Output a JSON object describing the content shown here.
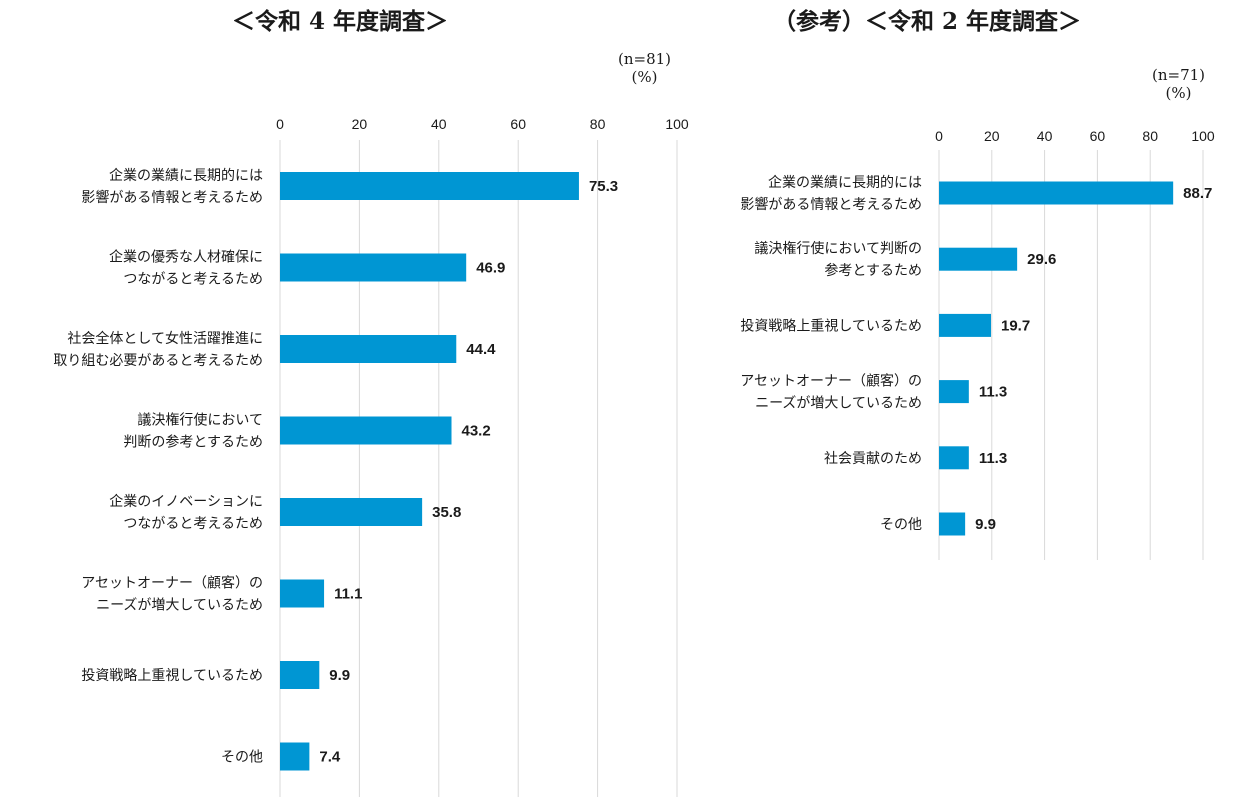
{
  "colors": {
    "bar": "#0096D3",
    "grid": "#D9D9D9",
    "text": "#1A1A1A"
  },
  "left": {
    "title": "＜令和 4 年度調査＞",
    "n_label": "(n=81)",
    "unit_label": "(%)"
  },
  "right": {
    "title": "（参考）＜令和 2 年度調査＞",
    "n_label": "(n=71)",
    "unit_label": "(%)"
  },
  "chart_data": [
    {
      "type": "bar",
      "orientation": "horizontal",
      "title": "＜令和 4 年度調査＞",
      "categories": [
        [
          "企業の業績に長期的には",
          "影響がある情報と考えるため"
        ],
        [
          "企業の優秀な人材確保に",
          "つながると考えるため"
        ],
        [
          "社会全体として女性活躍推進に",
          "取り組む必要があると考えるため"
        ],
        [
          "議決権行使において",
          "判断の参考とするため"
        ],
        [
          "企業のイノベーションに",
          "つながると考えるため"
        ],
        [
          "アセットオーナー（顧客）の",
          "ニーズが増大しているため"
        ],
        [
          "投資戦略上重視しているため"
        ],
        [
          "その他"
        ]
      ],
      "values": [
        75.3,
        46.9,
        44.4,
        43.2,
        35.8,
        11.1,
        9.9,
        7.4
      ],
      "data_labels": [
        "75.3",
        "46.9",
        "44.4",
        "43.2",
        "35.8",
        "11.1",
        "9.9",
        "7.4"
      ],
      "xlim": [
        0,
        100
      ],
      "xticks": [
        0,
        20,
        40,
        60,
        80,
        100
      ],
      "grid": true
    },
    {
      "type": "bar",
      "orientation": "horizontal",
      "title": "（参考）＜令和 2 年度調査＞",
      "categories": [
        [
          "企業の業績に長期的には",
          "影響がある情報と考えるため"
        ],
        [
          "議決権行使において判断の",
          "参考とするため"
        ],
        [
          "投資戦略上重視しているため"
        ],
        [
          "アセットオーナー（顧客）の",
          "ニーズが増大しているため"
        ],
        [
          "社会貢献のため"
        ],
        [
          "その他"
        ]
      ],
      "values": [
        88.7,
        29.6,
        19.7,
        11.3,
        11.3,
        9.9
      ],
      "data_labels": [
        "88.7",
        "29.6",
        "19.7",
        "11.3",
        "11.3",
        "9.9"
      ],
      "xlim": [
        0,
        100
      ],
      "xticks": [
        0,
        20,
        40,
        60,
        80,
        100
      ],
      "grid": true
    }
  ]
}
